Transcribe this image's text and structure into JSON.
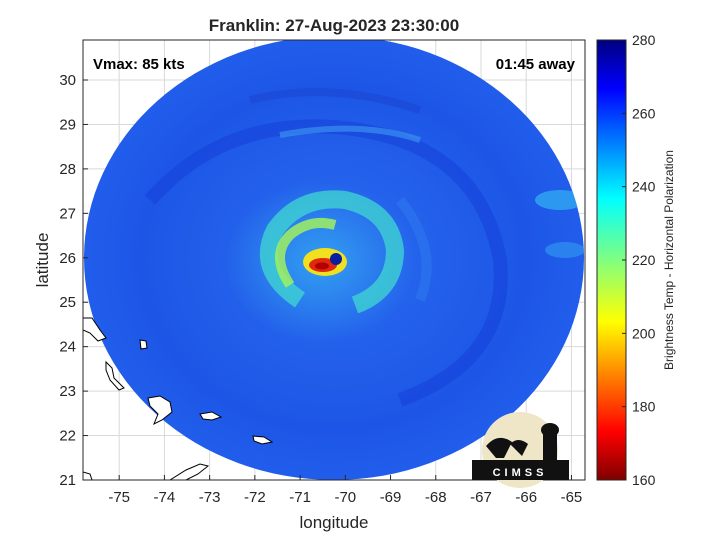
{
  "title": "Franklin: 27-Aug-2023 23:30:00",
  "vmax_label": "Vmax: 85 kts",
  "time_away_label": "01:45 away",
  "logo_text": "CIMSS",
  "colors": {
    "background_ring": "#1f5ee8",
    "eyewall_warm": "#f0e020",
    "eyewall_hot": "#e0280c",
    "eye": "#0a1ea0"
  },
  "chart_data": {
    "type": "heatmap",
    "xlabel": "longitude",
    "ylabel": "latitude",
    "xlim": [
      -75.8,
      -64.7
    ],
    "ylim": [
      21.0,
      30.9
    ],
    "x_ticks": [
      "-75",
      "-74",
      "-73",
      "-72",
      "-71",
      "-70",
      "-69",
      "-68",
      "-67",
      "-66",
      "-65"
    ],
    "y_ticks": [
      "21",
      "22",
      "23",
      "24",
      "25",
      "26",
      "27",
      "28",
      "29",
      "30"
    ],
    "grid": true,
    "storm_center": {
      "lon": -70.3,
      "lat": 26.0
    },
    "colorbar": {
      "label": "Brightness Temp - Horizontal Polarization",
      "range": [
        160,
        280
      ],
      "ticks": [
        "160",
        "180",
        "200",
        "220",
        "240",
        "260",
        "280"
      ],
      "colormap": "jet"
    }
  }
}
